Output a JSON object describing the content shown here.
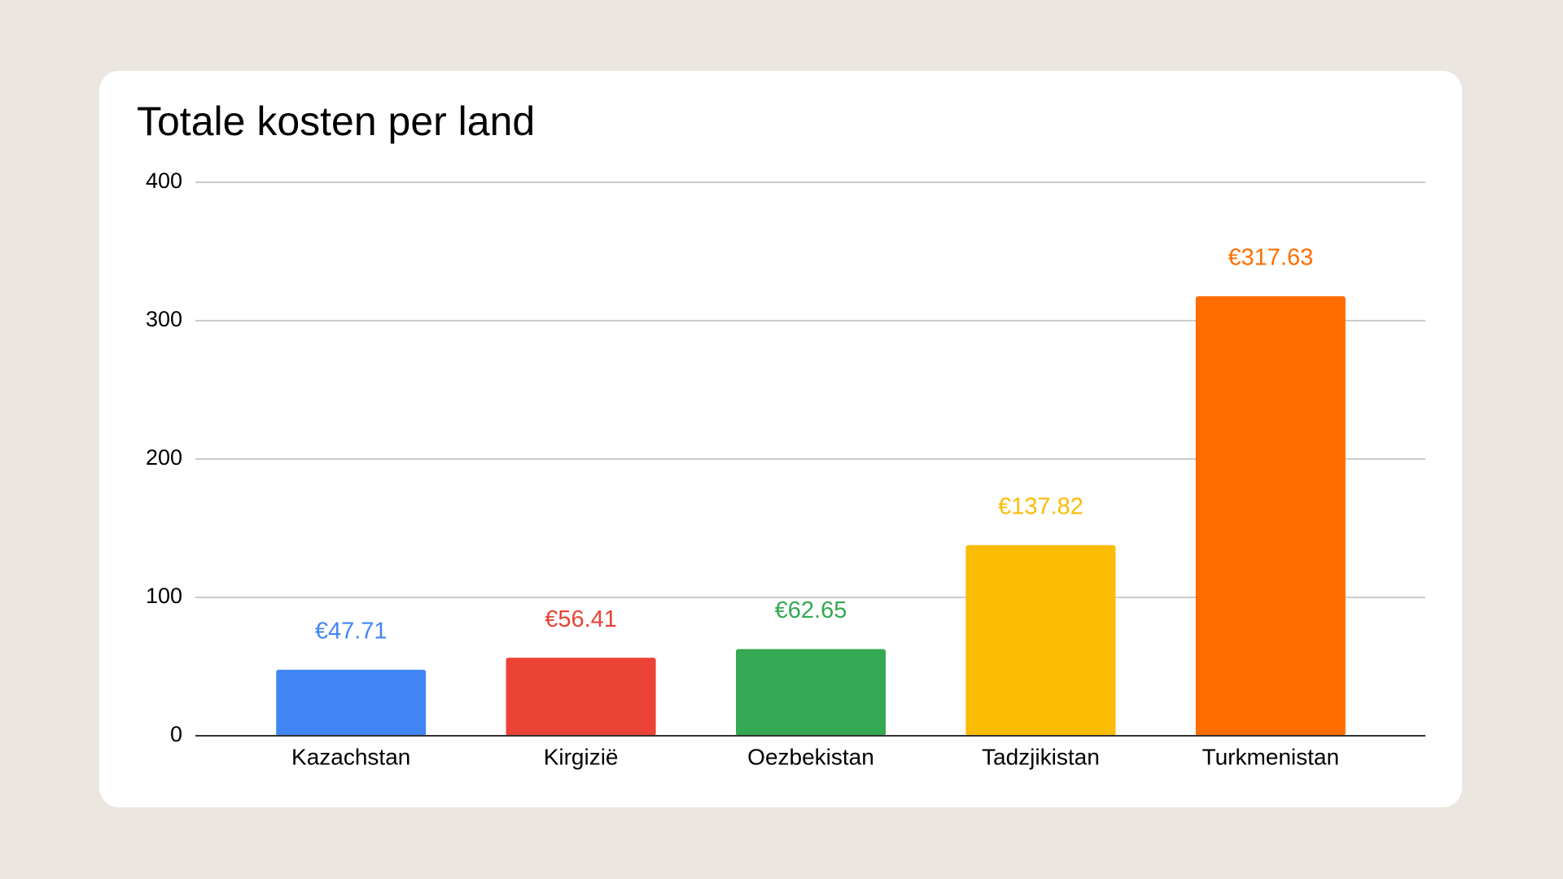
{
  "chart_data": {
    "type": "bar",
    "title": "Totale kosten per land",
    "categories": [
      "Kazachstan",
      "Kirgizië",
      "Oezbekistan",
      "Tadzjikistan",
      "Turkmenistan"
    ],
    "values": [
      47.71,
      56.41,
      62.65,
      137.82,
      317.63
    ],
    "value_labels": [
      "€47.71",
      "€56.41",
      "€62.65",
      "€137.82",
      "€317.63"
    ],
    "colors": [
      "#4285f4",
      "#ea4335",
      "#34a853",
      "#fbbc04",
      "#ff6d01"
    ],
    "ylim": [
      0,
      400
    ],
    "yticks": [
      0,
      100,
      200,
      300,
      400
    ],
    "grid": true
  }
}
